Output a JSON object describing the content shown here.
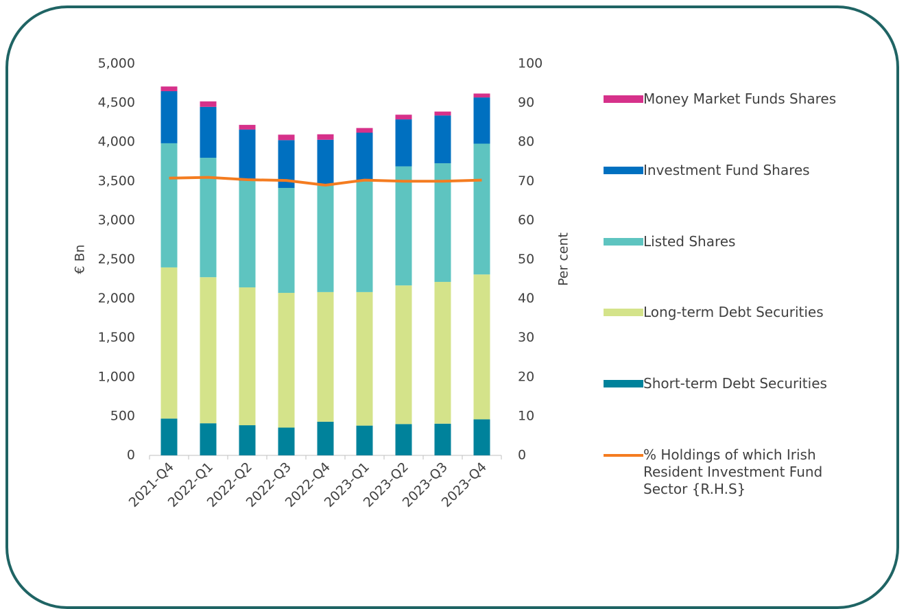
{
  "chart_data": {
    "type": "bar",
    "stacked": true,
    "y_label": "€ Bn",
    "y2_label": "Per cent",
    "categories": [
      "2021-Q4",
      "2022-Q1",
      "2022-Q2",
      "2022-Q3",
      "2022-Q4",
      "2023-Q1",
      "2023-Q2",
      "2023-Q3",
      "2023-Q4"
    ],
    "series": [
      {
        "name": "Short-term Debt Securities",
        "color": "#00829b",
        "values": [
          470,
          410,
          385,
          355,
          430,
          380,
          400,
          405,
          460
        ]
      },
      {
        "name": "Long-term Debt Securities",
        "color": "#d4e38a",
        "values": [
          1930,
          1865,
          1760,
          1720,
          1655,
          1705,
          1770,
          1810,
          1850
        ]
      },
      {
        "name": "Listed Shares",
        "color": "#5ec4c0",
        "values": [
          1585,
          1525,
          1360,
          1340,
          1365,
          1415,
          1520,
          1515,
          1670
        ]
      },
      {
        "name": "Investment Fund Shares",
        "color": "#0070c0",
        "values": [
          665,
          650,
          655,
          610,
          580,
          620,
          600,
          610,
          590
        ]
      },
      {
        "name": "Money Market Funds Shares",
        "color": "#d6318a",
        "values": [
          60,
          70,
          60,
          70,
          70,
          60,
          60,
          50,
          50
        ]
      },
      {
        "name": "% Holdings of which Irish Resident Investment Fund Sector {R.H.S}",
        "color": "#f47c20",
        "type": "line",
        "axis": "y2",
        "values": [
          70.8,
          71.0,
          70.4,
          70.2,
          69.0,
          70.3,
          70.0,
          70.0,
          70.3
        ]
      }
    ],
    "ylim": [
      0,
      5000
    ],
    "yticks": [
      0,
      500,
      {
        "value": 1000,
        "label": "1,000"
      },
      {
        "value": 1500,
        "label": "1,500"
      },
      {
        "value": 2000,
        "label": "2,000"
      },
      {
        "value": 2500,
        "label": "2,500"
      },
      {
        "value": 3000,
        "label": "3,000"
      },
      {
        "value": 3500,
        "label": "3,500"
      },
      {
        "value": 4000,
        "label": "4,000"
      },
      {
        "value": 4500,
        "label": "4,500"
      },
      {
        "value": 5000,
        "label": "5,000"
      }
    ],
    "y2lim": [
      0,
      100
    ],
    "y2ticks": [
      0,
      10,
      20,
      30,
      40,
      50,
      60,
      70,
      80,
      90,
      100
    ],
    "grid": false,
    "legend": "right"
  }
}
